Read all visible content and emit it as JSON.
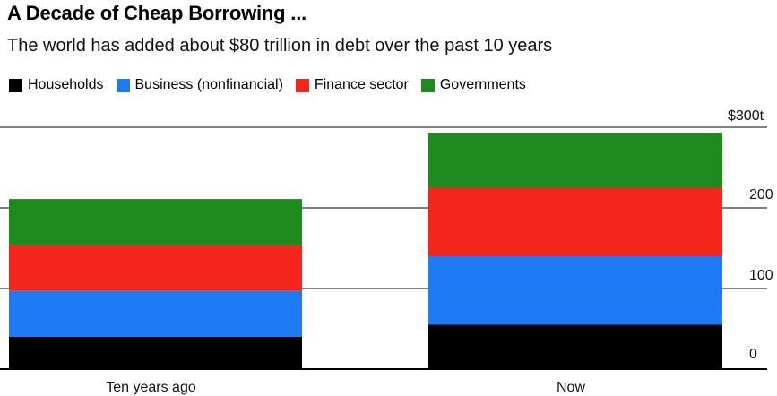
{
  "colors": {
    "households": "#000000",
    "business": "#1e7bf5",
    "finance": "#f5261b",
    "governments": "#1f8a1f",
    "grid": "#555555"
  },
  "chart_data": {
    "type": "bar",
    "stacked": true,
    "title": "A Decade of Cheap Borrowing ...",
    "subtitle": "The world has added about $80 trillion in debt over the past 10 years",
    "categories": [
      "Ten years ago",
      "Now"
    ],
    "series": [
      {
        "name": "Households",
        "color_key": "households",
        "values": [
          40,
          55
        ]
      },
      {
        "name": "Business (nonfinancial)",
        "color_key": "business",
        "values": [
          57,
          85
        ]
      },
      {
        "name": "Finance sector",
        "color_key": "finance",
        "values": [
          57,
          85
        ]
      },
      {
        "name": "Governments",
        "color_key": "governments",
        "values": [
          57,
          68
        ]
      }
    ],
    "y_ticks": [
      {
        "value": 300,
        "label": "$300t"
      },
      {
        "value": 200,
        "label": "200"
      },
      {
        "value": 100,
        "label": "100"
      },
      {
        "value": 0,
        "label": "0"
      }
    ],
    "ylim": [
      0,
      300
    ],
    "grid": true,
    "legend_position": "top-left",
    "axis_side": "right"
  }
}
